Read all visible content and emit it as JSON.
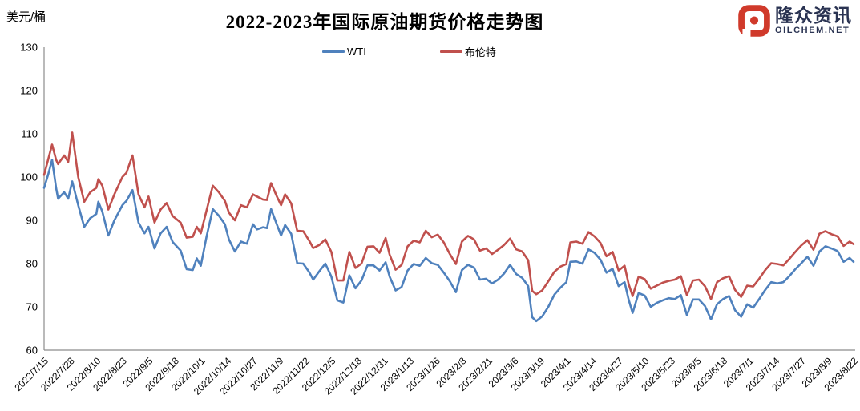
{
  "header": {
    "unit_label": "美元/桶",
    "title": "2022-2023年国际原油期货价格走势图"
  },
  "logo": {
    "name": "隆众资讯",
    "domain": "OILCHEM.NET",
    "icon": "oilchem-e-icon",
    "icon_color": "#D03A2B",
    "text_color": "#2A3352"
  },
  "chart_data": {
    "type": "line",
    "title": "2022-2023年国际原油期货价格走势图",
    "ylabel": "美元/桶",
    "ylim": [
      60,
      130
    ],
    "yticks": [
      60,
      70,
      80,
      90,
      100,
      110,
      120,
      130
    ],
    "grid": false,
    "legend_position": "top-center",
    "axis_color": "#8C8C8C",
    "x_tick_interval_days": 13,
    "xlim_days": [
      0,
      403
    ],
    "x_tick_labels": [
      "2022/7/15",
      "2022/7/28",
      "2022/8/10",
      "2022/8/23",
      "2022/9/5",
      "2022/9/18",
      "2022/10/1",
      "2022/10/14",
      "2022/10/27",
      "2022/11/9",
      "2022/11/22",
      "2022/12/5",
      "2022/12/18",
      "2022/12/31",
      "2023/1/13",
      "2023/1/26",
      "2023/2/8",
      "2023/2/21",
      "2023/3/6",
      "2023/3/19",
      "2023/4/1",
      "2023/4/14",
      "2023/4/27",
      "2023/5/10",
      "2023/5/23",
      "2023/6/5",
      "2023/6/18",
      "2023/7/1",
      "2023/7/14",
      "2023/7/27",
      "2023/8/9",
      "2023/8/22"
    ],
    "days": [
      0,
      2,
      4,
      6,
      7,
      10,
      12,
      14,
      17,
      20,
      23,
      26,
      27,
      29,
      32,
      35,
      39,
      41,
      44,
      47,
      50,
      52,
      55,
      58,
      61,
      64,
      68,
      71,
      74,
      76,
      78,
      81,
      84,
      87,
      90,
      92,
      95,
      98,
      101,
      104,
      106,
      109,
      111,
      113,
      116,
      118,
      120,
      123,
      126,
      129,
      132,
      134,
      137,
      140,
      143,
      146,
      149,
      152,
      155,
      158,
      161,
      164,
      167,
      170,
      172,
      175,
      178,
      181,
      184,
      187,
      190,
      193,
      196,
      199,
      202,
      205,
      208,
      211,
      214,
      217,
      220,
      223,
      226,
      229,
      232,
      235,
      238,
      241,
      243,
      245,
      248,
      251,
      254,
      257,
      260,
      262,
      265,
      268,
      271,
      274,
      277,
      280,
      283,
      286,
      289,
      291,
      293,
      296,
      299,
      302,
      305,
      308,
      311,
      314,
      317,
      320,
      323,
      326,
      329,
      332,
      335,
      338,
      341,
      344,
      347,
      350,
      353,
      356,
      359,
      362,
      365,
      368,
      371,
      374,
      377,
      380,
      383,
      386,
      389,
      392,
      395,
      398,
      401,
      403
    ],
    "series": [
      {
        "name": "WTI",
        "color": "#4F81BD",
        "values": [
          97.5,
          100.5,
          104,
          97.5,
          95,
          96.5,
          95,
          99,
          93.5,
          88.5,
          90.5,
          91.5,
          94.3,
          92,
          86.5,
          90,
          93.5,
          94.5,
          97,
          89.5,
          87,
          88.5,
          83.5,
          87,
          88.5,
          85,
          83,
          78.7,
          78.5,
          81.2,
          79.5,
          86.5,
          92.6,
          91.1,
          89.1,
          85.6,
          82.8,
          85.1,
          84.6,
          89.1,
          87.9,
          88.4,
          88.2,
          92.6,
          88.9,
          86.5,
          88.9,
          86.9,
          80.1,
          80,
          78,
          76.3,
          78.2,
          80,
          77,
          71.5,
          71,
          77.3,
          74.3,
          76.1,
          79.6,
          79.6,
          78.4,
          80.3,
          77,
          73.8,
          74.6,
          78.4,
          79.9,
          79.5,
          81.3,
          80.1,
          79.7,
          77.9,
          75.9,
          73.4,
          78.5,
          79.7,
          79.1,
          76.3,
          76.5,
          75.4,
          76.3,
          77.7,
          79.7,
          77.6,
          76.7,
          74.8,
          67.6,
          66.7,
          67.8,
          70,
          72.8,
          74.4,
          75.7,
          80.4,
          80.5,
          80,
          83.3,
          82.5,
          80.9,
          77.9,
          78.8,
          74.8,
          75.7,
          71.7,
          68.6,
          73.2,
          72.6,
          70,
          70.9,
          71.5,
          72,
          71.8,
          72.7,
          68.1,
          71.7,
          71.7,
          70.2,
          67.1,
          70.6,
          71.8,
          72.5,
          69.2,
          67.7,
          70.6,
          69.8,
          71.8,
          73.9,
          75.7,
          75.4,
          75.7,
          77.1,
          78.7,
          80.1,
          81.6,
          79.5,
          82.8,
          84,
          83.5,
          82.9,
          80.4,
          81.3,
          80.4
        ]
      },
      {
        "name": "布伦特",
        "color": "#C0504D",
        "values": [
          100.5,
          104,
          107.5,
          104,
          103,
          105,
          103.5,
          110.3,
          100,
          94.3,
          96.5,
          97.5,
          99.5,
          98,
          92.5,
          96,
          100,
          101,
          105,
          96,
          93,
          95.5,
          89.5,
          92.5,
          94,
          91,
          89.5,
          86,
          86.2,
          88.5,
          87,
          92.5,
          98,
          96.5,
          94.5,
          91.8,
          90,
          93.5,
          93,
          96,
          95.5,
          94.8,
          94.7,
          98.6,
          95.4,
          93.5,
          96,
          93.9,
          87.6,
          87.5,
          85.3,
          83.6,
          84.3,
          85.6,
          82.7,
          76.1,
          76.1,
          82.7,
          79,
          80,
          83.9,
          84,
          82.5,
          85.9,
          82.1,
          78.6,
          79.7,
          84,
          85.3,
          84.9,
          87.6,
          86.1,
          86.7,
          84.9,
          82.2,
          79.9,
          85.1,
          86.4,
          85.6,
          83,
          83.5,
          82.2,
          83.2,
          84.3,
          85.8,
          83.3,
          82.8,
          80.8,
          73.7,
          72.9,
          73.8,
          75.9,
          78.1,
          79.3,
          79.9,
          84.9,
          85.1,
          84.6,
          87.3,
          86.3,
          84.8,
          81.7,
          82.7,
          78.4,
          79.5,
          75.3,
          72.5,
          77,
          76.4,
          74.2,
          74.9,
          75.6,
          76,
          76.3,
          77.1,
          72.7,
          76.1,
          76.3,
          74.8,
          71.8,
          75.7,
          76.6,
          77.1,
          73.9,
          72.3,
          74.9,
          74.7,
          76.5,
          78.5,
          80.1,
          79.9,
          79.6,
          81.1,
          82.7,
          84.2,
          85.4,
          83.2,
          86.9,
          87.5,
          86.8,
          86.3,
          84.1,
          85.1,
          84.5
        ]
      }
    ]
  }
}
